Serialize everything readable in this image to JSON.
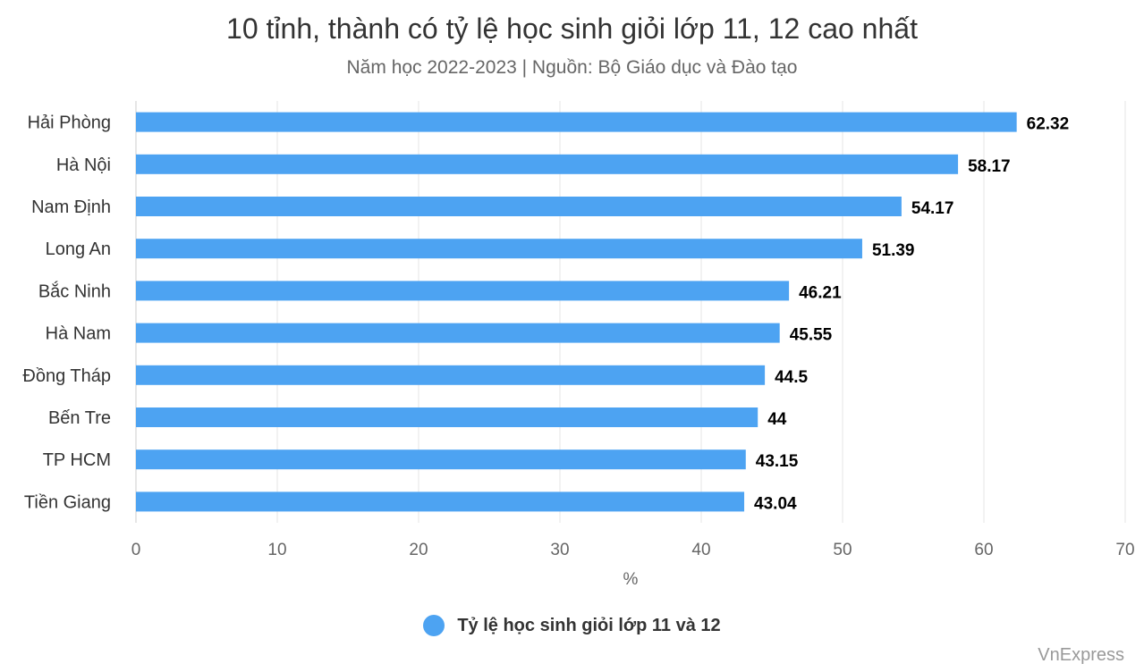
{
  "chart_data": {
    "type": "bar",
    "orientation": "horizontal",
    "title": "10 tỉnh, thành có tỷ lệ học sinh giỏi lớp 11, 12 cao nhất",
    "subtitle": "Năm học 2022-2023 | Nguồn: Bộ Giáo dục và Đào tạo",
    "categories": [
      "Hải Phòng",
      "Hà Nội",
      "Nam Định",
      "Long An",
      "Bắc Ninh",
      "Hà Nam",
      "Đồng Tháp",
      "Bến Tre",
      "TP HCM",
      "Tiền Giang"
    ],
    "series": [
      {
        "name": "Tỷ lệ học sinh giỏi lớp 11 và 12",
        "values": [
          62.32,
          58.17,
          54.17,
          51.39,
          46.21,
          45.55,
          44.5,
          44,
          43.15,
          43.04
        ],
        "color": "#4da3f2"
      }
    ],
    "xlabel": "%",
    "ylabel": "",
    "xlim": [
      0,
      70
    ],
    "xticks": [
      0,
      10,
      20,
      30,
      40,
      50,
      60,
      70
    ],
    "grid": true,
    "data_labels": true,
    "legend_position": "bottom"
  },
  "credit": "VnExpress"
}
